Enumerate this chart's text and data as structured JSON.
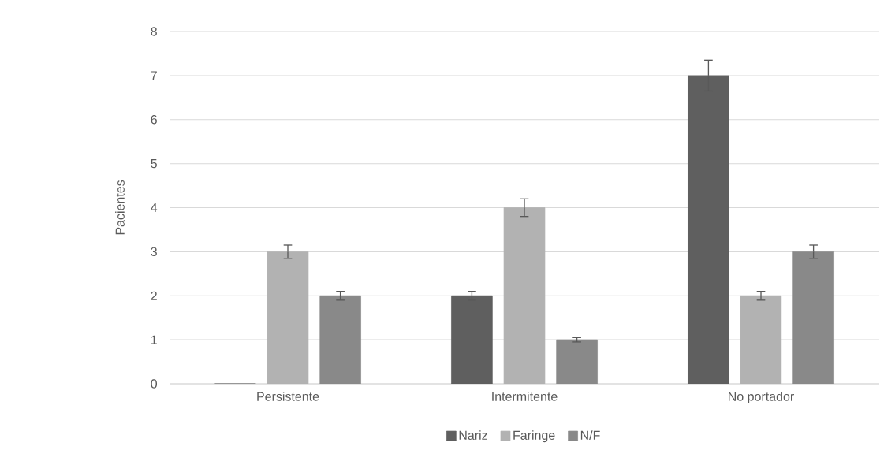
{
  "chart_data": {
    "type": "bar",
    "ylabel": "Pacientes",
    "categories": [
      "Persistente",
      "Intermitente",
      "No portador"
    ],
    "series": [
      {
        "name": "Nariz",
        "color": "#5f5f5f",
        "values": [
          0,
          2,
          7
        ],
        "errors": [
          null,
          0.1,
          0.35
        ]
      },
      {
        "name": "Faringe",
        "color": "#b2b2b2",
        "values": [
          3,
          4,
          2
        ],
        "errors": [
          0.15,
          0.2,
          0.1
        ]
      },
      {
        "name": "N/F",
        "color": "#898989",
        "values": [
          2,
          1,
          3
        ],
        "errors": [
          0.1,
          0.05,
          0.15
        ]
      }
    ],
    "ylim": [
      0,
      8
    ],
    "yticks": [
      0,
      1,
      2,
      3,
      4,
      5,
      6,
      7,
      8
    ],
    "grid": "y",
    "legend": "bottom"
  }
}
